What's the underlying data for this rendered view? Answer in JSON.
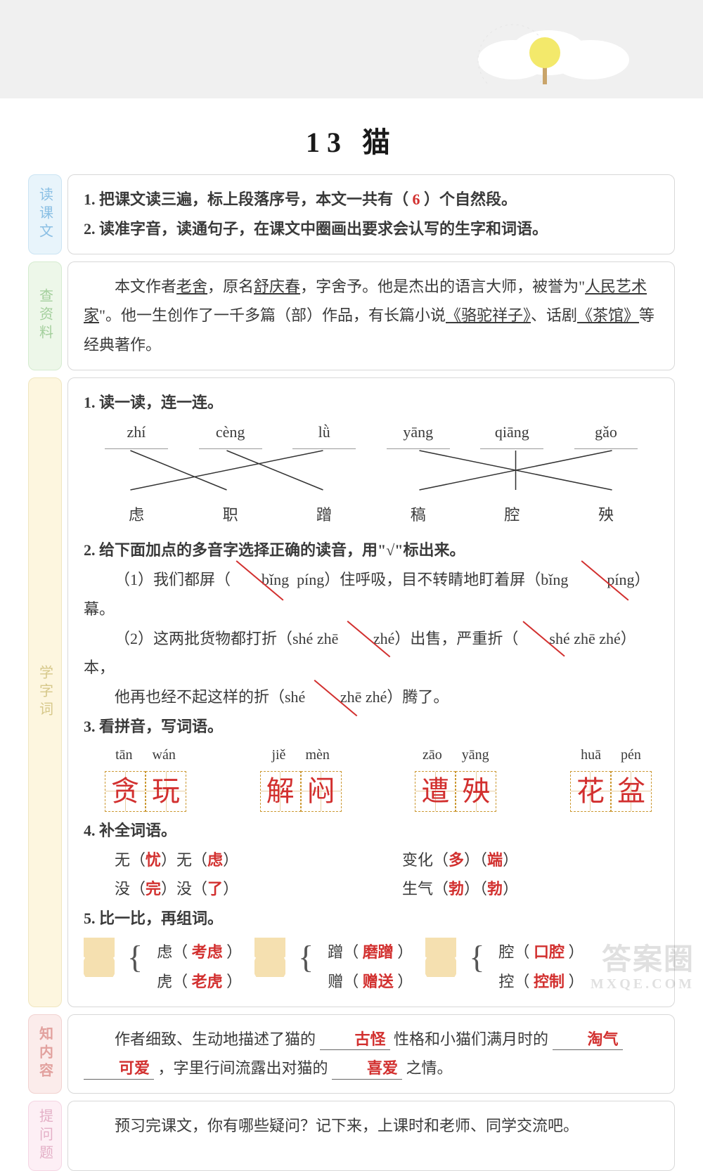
{
  "title": "13  猫",
  "watermark": {
    "big": "答案圈",
    "small": "MXQE.COM"
  },
  "section1": {
    "tab": "读课文",
    "line1_pre": "1. 把课文读三遍，标上段落序号，本文一共有（ ",
    "line1_ans": "6",
    "line1_post": " ）个自然段。",
    "line2": "2. 读准字音，读通句子，在课文中圈画出要求会认写的生字和词语。"
  },
  "section2": {
    "tab": "查资料",
    "text_a": "本文作者",
    "u1": "老舍",
    "text_b": "，原名",
    "u2": "舒庆春",
    "text_c": "，字舍予。他是杰出的语言大师，被誉为\"",
    "u3": "人民艺术家",
    "text_d": "\"。他一生创作了一千多篇（部）作品，有长篇小说",
    "u4": "《骆驼祥子》",
    "text_e": "、话剧",
    "u5": "《茶馆》",
    "text_f": "等经典著作。"
  },
  "section3": {
    "tab": "学字词",
    "q1": "1. 读一读，连一连。",
    "pinyin": [
      "zhí",
      "cèng",
      "lǜ",
      "yāng",
      "qiāng",
      "gǎo"
    ],
    "hanzi": [
      "虑",
      "职",
      "蹭",
      "稿",
      "腔",
      "殃"
    ],
    "match_lines": [
      [
        0,
        1
      ],
      [
        1,
        2
      ],
      [
        2,
        0
      ],
      [
        3,
        5
      ],
      [
        4,
        4
      ],
      [
        5,
        3
      ]
    ],
    "q2": "2. 给下面加点的多音字选择正确的读音，用\"√\"标出来。",
    "q2_line1a": "（1）我们都屏（",
    "q2_o1": "bǐng",
    "q2_o2": "píng",
    "q2_line1b": "）住呼吸，目不转睛地盯着屏（",
    "q2_o3": "bǐng",
    "q2_o4": "píng",
    "q2_line1c": "）幕。",
    "q2_line2a": "（2）这两批货物都打折（shé  zhē  ",
    "q2_o5": "zhé",
    "q2_line2b": "）出售，严重折（",
    "q2_o6": "shé",
    "q2_line2c": "  zhē  zhé）本，",
    "q2_line3a": "他再也经不起这样的折（shé  ",
    "q2_o7": "zhē",
    "q2_line3b": "  zhé）腾了。",
    "q3": "3. 看拼音，写词语。",
    "write": [
      {
        "py": [
          "tān",
          "wán"
        ],
        "ch": [
          "贪",
          "玩"
        ]
      },
      {
        "py": [
          "jiě",
          "mèn"
        ],
        "ch": [
          "解",
          "闷"
        ]
      },
      {
        "py": [
          "zāo",
          "yāng"
        ],
        "ch": [
          "遭",
          "殃"
        ]
      },
      {
        "py": [
          "huā",
          "pén"
        ],
        "ch": [
          "花",
          "盆"
        ]
      }
    ],
    "q4": "4. 补全词语。",
    "q4_items": [
      {
        "tpl": "无（",
        "a": "忧",
        "mid": "）无（",
        "b": "虑",
        "end": "）"
      },
      {
        "tpl": "变化（",
        "a": "多",
        "mid": "）（",
        "b": "端",
        "end": "）"
      },
      {
        "tpl": "没（",
        "a": "完",
        "mid": "）没（",
        "b": "了",
        "end": "）"
      },
      {
        "tpl": "生气（",
        "a": "勃",
        "mid": "）（",
        "b": "勃",
        "end": "）"
      }
    ],
    "q5": "5. 比一比，再组词。",
    "q5_groups": [
      {
        "top_ch": "虑",
        "top_ans": "考虑",
        "bot_ch": "虎",
        "bot_ans": "老虎"
      },
      {
        "top_ch": "蹭",
        "top_ans": "磨蹭",
        "bot_ch": "赠",
        "bot_ans": "赠送"
      },
      {
        "top_ch": "腔",
        "top_ans": "口腔",
        "bot_ch": "控",
        "bot_ans": "控制"
      }
    ]
  },
  "section4": {
    "tab": "知内容",
    "pre1": "作者细致、生动地描述了猫的",
    "ans1": "古怪",
    "mid1": "性格和小猫们满月时的",
    "ans2": "淘气",
    "ans3": "可爱",
    "mid2": "，字里行间流露出对猫的",
    "ans4": "喜爱",
    "post": "之情。"
  },
  "section5": {
    "tab": "提问题",
    "text": "预习完课文，你有哪些疑问？记下来，上课时和老师、同学交流吧。"
  }
}
